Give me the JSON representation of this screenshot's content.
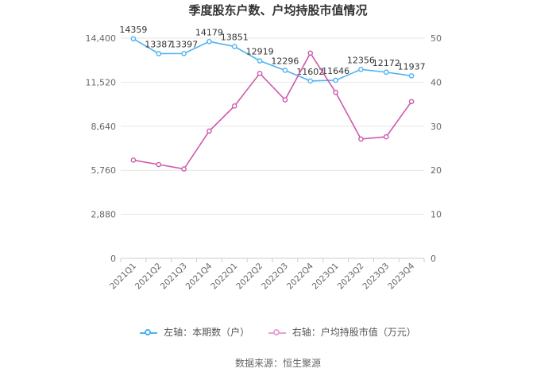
{
  "chart_data": {
    "type": "line",
    "title": "季度股东户数、户均持股市值情况",
    "categories": [
      "2021Q1",
      "2021Q2",
      "2021Q3",
      "2021Q4",
      "2022Q1",
      "2022Q2",
      "2022Q3",
      "2022Q4",
      "2023Q1",
      "2023Q2",
      "2023Q3",
      "2023Q4"
    ],
    "left_axis": {
      "ticks": [
        "0",
        "2,880",
        "5,760",
        "8,640",
        "11,520",
        "14,400"
      ],
      "ylim": [
        0,
        14400
      ]
    },
    "right_axis": {
      "ticks": [
        "0",
        "10",
        "20",
        "30",
        "40",
        "50"
      ],
      "ylim": [
        0,
        50
      ]
    },
    "series": [
      {
        "name": "左轴：本期数（户）",
        "axis": "left",
        "color": "#4db3f0",
        "values": [
          14359,
          13387,
          13397,
          14179,
          13851,
          12919,
          12296,
          11602,
          11646,
          12356,
          12172,
          11937
        ],
        "labels": [
          "14359",
          "13387",
          "13397",
          "14179",
          "13851",
          "12919",
          "12296",
          "11602",
          "11646",
          "12356",
          "12172",
          "11937"
        ]
      },
      {
        "name": "右轴：户均持股市值（万元）",
        "axis": "right",
        "color": "#cc5aac",
        "values": [
          22.3,
          21.3,
          20.3,
          28.9,
          34.6,
          42.0,
          36.0,
          46.6,
          37.7,
          27.1,
          27.6,
          35.6
        ]
      }
    ],
    "grid": true,
    "legend_position": "bottom"
  },
  "legend": {
    "left_label": "左轴：本期数（户）",
    "right_label": "右轴：户均持股市值（万元）"
  },
  "source": "数据来源：恒生聚源"
}
